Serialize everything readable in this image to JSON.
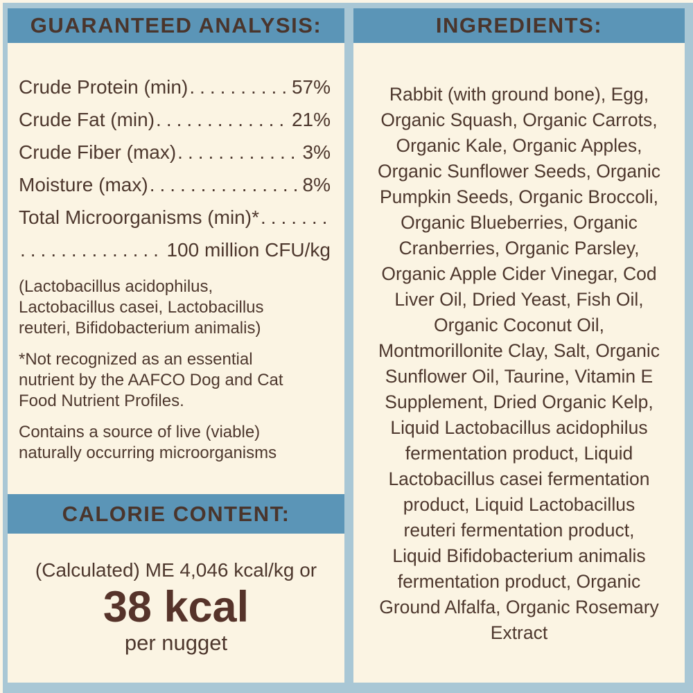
{
  "palette": {
    "background_cream": "#fbf4e3",
    "frame_light_blue": "#a9c7d5",
    "header_blue": "#5b95b7",
    "text_brown": "#4d372d",
    "highlight_brown": "#56332a"
  },
  "guaranteed_analysis": {
    "title": "GUARANTEED ANALYSIS:",
    "dot_leader": "......................................................",
    "rows": [
      {
        "label": "Crude Protein (min)",
        "value": "57%"
      },
      {
        "label": "Crude Fat (min)",
        "value": "21%"
      },
      {
        "label": "Crude Fiber (max)",
        "value": "3%"
      },
      {
        "label": "Moisture (max)",
        "value": "8%"
      },
      {
        "label": "Total Microorganisms (min)*",
        "value": ""
      }
    ],
    "continuation_value": "100 million CFU/kg",
    "notes": [
      "(Lactobacillus acidophilus,\nLactobacillus casei, Lactobacillus\nreuteri, Bifidobacterium animalis)",
      "*Not recognized as an essential\nnutrient by the AAFCO Dog and Cat\nFood Nutrient Profiles.",
      "Contains a source of live (viable)\nnaturally occurring microorganisms"
    ]
  },
  "calorie_content": {
    "title": "CALORIE CONTENT:",
    "calculated_line": "(Calculated) ME 4,046 kcal/kg or",
    "highlight_value": "38 kcal",
    "unit_line": "per nugget"
  },
  "ingredients": {
    "title": "INGREDIENTS:",
    "text": "Rabbit (with ground bone), Egg,\nOrganic Squash, Organic Carrots,\nOrganic Kale, Organic Apples,\nOrganic Sunflower Seeds, Organic\nPumpkin Seeds, Organic Broccoli,\nOrganic Blueberries, Organic\nCranberries, Organic Parsley,\nOrganic Apple Cider Vinegar, Cod\nLiver Oil, Dried Yeast, Fish Oil,\nOrganic Coconut Oil,\nMontmorillonite Clay, Salt, Organic\nSunflower Oil, Taurine, Vitamin E\nSupplement, Dried Organic Kelp,\nLiquid Lactobacillus acidophilus\nfermentation product, Liquid\nLactobacillus casei fermentation\nproduct, Liquid Lactobacillus\nreuteri fermentation product,\nLiquid Bifidobacterium animalis\nfermentation product, Organic\nGround Alfalfa, Organic Rosemary\nExtract"
  }
}
